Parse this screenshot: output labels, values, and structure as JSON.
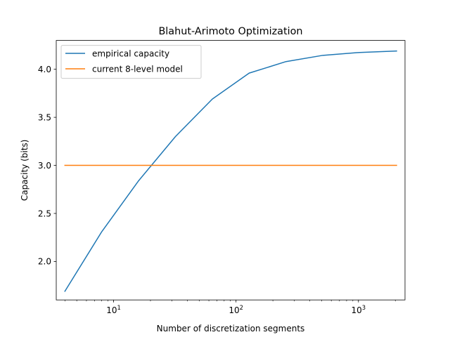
{
  "chart_data": {
    "type": "line",
    "title": "Blahut-Arimoto Optimization",
    "xlabel": "Number of discretization segments",
    "ylabel": "Capacity (bits)",
    "xscale": "log",
    "xlim": [
      3.4,
      2400
    ],
    "ylim": [
      1.6,
      4.3
    ],
    "x": [
      4,
      8,
      16,
      32,
      64,
      128,
      256,
      512,
      1024,
      2048
    ],
    "x_ticks": [
      {
        "value": 10,
        "base": "10",
        "exp": "1"
      },
      {
        "value": 100,
        "base": "10",
        "exp": "2"
      },
      {
        "value": 1000,
        "base": "10",
        "exp": "3"
      }
    ],
    "y_ticks": [
      "2.0",
      "2.5",
      "3.0",
      "3.5",
      "4.0"
    ],
    "grid": false,
    "legend_position": "top-left",
    "series": [
      {
        "name": "empirical capacity",
        "color": "#1f77b4",
        "values": [
          1.69,
          2.31,
          2.84,
          3.3,
          3.69,
          3.96,
          4.08,
          4.145,
          4.175,
          4.19
        ]
      },
      {
        "name": "current 8-level model",
        "color": "#ff7f0e",
        "values": [
          3.0,
          3.0,
          3.0,
          3.0,
          3.0,
          3.0,
          3.0,
          3.0,
          3.0,
          3.0
        ]
      }
    ]
  }
}
